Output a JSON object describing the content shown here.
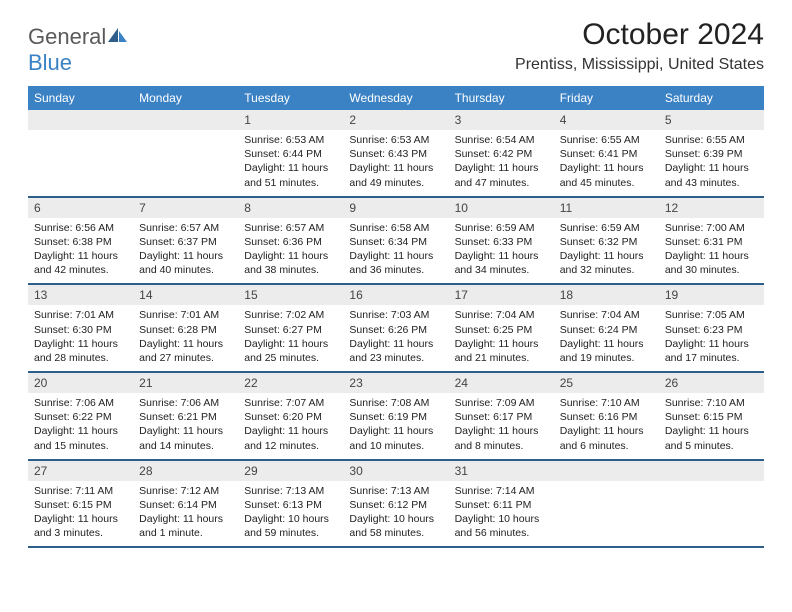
{
  "logo": {
    "general": "General",
    "blue": "Blue"
  },
  "title": "October 2024",
  "location": "Prentiss, Mississippi, United States",
  "colors": {
    "header_bg": "#3b82c4",
    "week_border": "#2e5e8a",
    "daynum_bg": "#ececec",
    "text": "#222222",
    "logo_gray": "#5a5a5a",
    "logo_blue": "#3b82c4"
  },
  "day_names": [
    "Sunday",
    "Monday",
    "Tuesday",
    "Wednesday",
    "Thursday",
    "Friday",
    "Saturday"
  ],
  "weeks": [
    [
      {
        "n": "",
        "sr": "",
        "ss": "",
        "dl": ""
      },
      {
        "n": "",
        "sr": "",
        "ss": "",
        "dl": ""
      },
      {
        "n": "1",
        "sr": "Sunrise: 6:53 AM",
        "ss": "Sunset: 6:44 PM",
        "dl": "Daylight: 11 hours and 51 minutes."
      },
      {
        "n": "2",
        "sr": "Sunrise: 6:53 AM",
        "ss": "Sunset: 6:43 PM",
        "dl": "Daylight: 11 hours and 49 minutes."
      },
      {
        "n": "3",
        "sr": "Sunrise: 6:54 AM",
        "ss": "Sunset: 6:42 PM",
        "dl": "Daylight: 11 hours and 47 minutes."
      },
      {
        "n": "4",
        "sr": "Sunrise: 6:55 AM",
        "ss": "Sunset: 6:41 PM",
        "dl": "Daylight: 11 hours and 45 minutes."
      },
      {
        "n": "5",
        "sr": "Sunrise: 6:55 AM",
        "ss": "Sunset: 6:39 PM",
        "dl": "Daylight: 11 hours and 43 minutes."
      }
    ],
    [
      {
        "n": "6",
        "sr": "Sunrise: 6:56 AM",
        "ss": "Sunset: 6:38 PM",
        "dl": "Daylight: 11 hours and 42 minutes."
      },
      {
        "n": "7",
        "sr": "Sunrise: 6:57 AM",
        "ss": "Sunset: 6:37 PM",
        "dl": "Daylight: 11 hours and 40 minutes."
      },
      {
        "n": "8",
        "sr": "Sunrise: 6:57 AM",
        "ss": "Sunset: 6:36 PM",
        "dl": "Daylight: 11 hours and 38 minutes."
      },
      {
        "n": "9",
        "sr": "Sunrise: 6:58 AM",
        "ss": "Sunset: 6:34 PM",
        "dl": "Daylight: 11 hours and 36 minutes."
      },
      {
        "n": "10",
        "sr": "Sunrise: 6:59 AM",
        "ss": "Sunset: 6:33 PM",
        "dl": "Daylight: 11 hours and 34 minutes."
      },
      {
        "n": "11",
        "sr": "Sunrise: 6:59 AM",
        "ss": "Sunset: 6:32 PM",
        "dl": "Daylight: 11 hours and 32 minutes."
      },
      {
        "n": "12",
        "sr": "Sunrise: 7:00 AM",
        "ss": "Sunset: 6:31 PM",
        "dl": "Daylight: 11 hours and 30 minutes."
      }
    ],
    [
      {
        "n": "13",
        "sr": "Sunrise: 7:01 AM",
        "ss": "Sunset: 6:30 PM",
        "dl": "Daylight: 11 hours and 28 minutes."
      },
      {
        "n": "14",
        "sr": "Sunrise: 7:01 AM",
        "ss": "Sunset: 6:28 PM",
        "dl": "Daylight: 11 hours and 27 minutes."
      },
      {
        "n": "15",
        "sr": "Sunrise: 7:02 AM",
        "ss": "Sunset: 6:27 PM",
        "dl": "Daylight: 11 hours and 25 minutes."
      },
      {
        "n": "16",
        "sr": "Sunrise: 7:03 AM",
        "ss": "Sunset: 6:26 PM",
        "dl": "Daylight: 11 hours and 23 minutes."
      },
      {
        "n": "17",
        "sr": "Sunrise: 7:04 AM",
        "ss": "Sunset: 6:25 PM",
        "dl": "Daylight: 11 hours and 21 minutes."
      },
      {
        "n": "18",
        "sr": "Sunrise: 7:04 AM",
        "ss": "Sunset: 6:24 PM",
        "dl": "Daylight: 11 hours and 19 minutes."
      },
      {
        "n": "19",
        "sr": "Sunrise: 7:05 AM",
        "ss": "Sunset: 6:23 PM",
        "dl": "Daylight: 11 hours and 17 minutes."
      }
    ],
    [
      {
        "n": "20",
        "sr": "Sunrise: 7:06 AM",
        "ss": "Sunset: 6:22 PM",
        "dl": "Daylight: 11 hours and 15 minutes."
      },
      {
        "n": "21",
        "sr": "Sunrise: 7:06 AM",
        "ss": "Sunset: 6:21 PM",
        "dl": "Daylight: 11 hours and 14 minutes."
      },
      {
        "n": "22",
        "sr": "Sunrise: 7:07 AM",
        "ss": "Sunset: 6:20 PM",
        "dl": "Daylight: 11 hours and 12 minutes."
      },
      {
        "n": "23",
        "sr": "Sunrise: 7:08 AM",
        "ss": "Sunset: 6:19 PM",
        "dl": "Daylight: 11 hours and 10 minutes."
      },
      {
        "n": "24",
        "sr": "Sunrise: 7:09 AM",
        "ss": "Sunset: 6:17 PM",
        "dl": "Daylight: 11 hours and 8 minutes."
      },
      {
        "n": "25",
        "sr": "Sunrise: 7:10 AM",
        "ss": "Sunset: 6:16 PM",
        "dl": "Daylight: 11 hours and 6 minutes."
      },
      {
        "n": "26",
        "sr": "Sunrise: 7:10 AM",
        "ss": "Sunset: 6:15 PM",
        "dl": "Daylight: 11 hours and 5 minutes."
      }
    ],
    [
      {
        "n": "27",
        "sr": "Sunrise: 7:11 AM",
        "ss": "Sunset: 6:15 PM",
        "dl": "Daylight: 11 hours and 3 minutes."
      },
      {
        "n": "28",
        "sr": "Sunrise: 7:12 AM",
        "ss": "Sunset: 6:14 PM",
        "dl": "Daylight: 11 hours and 1 minute."
      },
      {
        "n": "29",
        "sr": "Sunrise: 7:13 AM",
        "ss": "Sunset: 6:13 PM",
        "dl": "Daylight: 10 hours and 59 minutes."
      },
      {
        "n": "30",
        "sr": "Sunrise: 7:13 AM",
        "ss": "Sunset: 6:12 PM",
        "dl": "Daylight: 10 hours and 58 minutes."
      },
      {
        "n": "31",
        "sr": "Sunrise: 7:14 AM",
        "ss": "Sunset: 6:11 PM",
        "dl": "Daylight: 10 hours and 56 minutes."
      },
      {
        "n": "",
        "sr": "",
        "ss": "",
        "dl": ""
      },
      {
        "n": "",
        "sr": "",
        "ss": "",
        "dl": ""
      }
    ]
  ]
}
